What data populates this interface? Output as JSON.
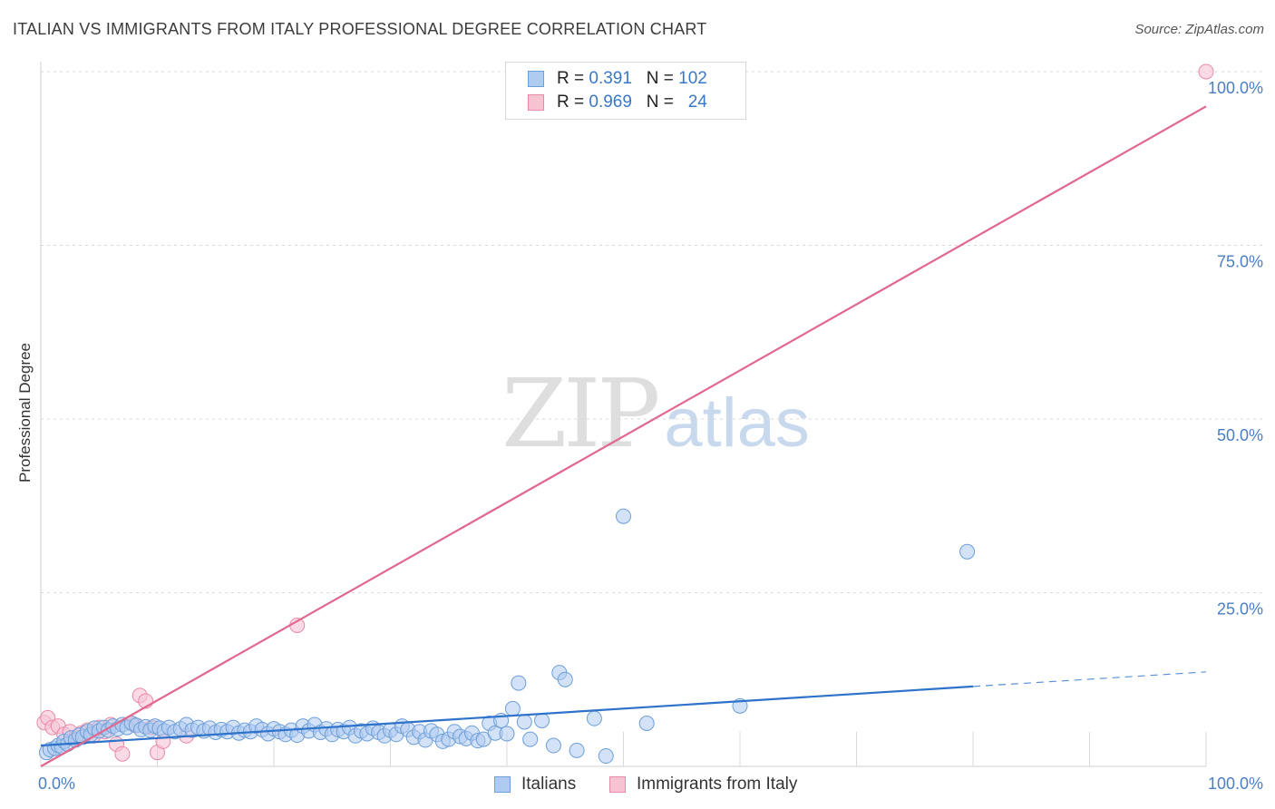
{
  "title": "ITALIAN VS IMMIGRANTS FROM ITALY PROFESSIONAL DEGREE CORRELATION CHART",
  "source": "Source: ZipAtlas.com",
  "watermark": {
    "zip": "ZIP",
    "atlas": "atlas"
  },
  "legend": {
    "r_label": "R =",
    "n_label": "N =",
    "rows": [
      {
        "r": "0.391",
        "n": "102"
      },
      {
        "r": "0.969",
        "n": "24"
      }
    ]
  },
  "colors": {
    "blue_fill": "#aecbf0",
    "blue_stroke": "#6d9fd8",
    "blue_line": "#2f72c9",
    "pink_fill": "#f7c3d3",
    "pink_stroke": "#e98aa7",
    "pink_line": "#e0688f",
    "grid": "#d9d9d9",
    "tick_text": "#4a7fc4"
  },
  "chart_data": {
    "type": "scatter",
    "title": "ITALIAN VS IMMIGRANTS FROM ITALY PROFESSIONAL DEGREE CORRELATION CHART",
    "xlabel": "",
    "ylabel": "Professional Degree",
    "xlim": [
      0,
      100
    ],
    "ylim": [
      0,
      100
    ],
    "x_tick_labels": [
      "0.0%",
      "100.0%"
    ],
    "y_ticks": [
      25,
      50,
      75,
      100
    ],
    "y_tick_labels": [
      "25.0%",
      "50.0%",
      "75.0%",
      "100.0%"
    ],
    "grid": true,
    "legend_position": "bottom-center",
    "series": [
      {
        "name": "Italians",
        "color": "#6d9fd8",
        "R": 0.391,
        "N": 102,
        "trend": {
          "x0": 0,
          "y0": 3.0,
          "x1": 80,
          "y1": 11.5,
          "dash_to_x": 100,
          "dash_to_y": 13.6
        },
        "points": [
          [
            0.5,
            2.0
          ],
          [
            0.8,
            2.4
          ],
          [
            1.2,
            2.6
          ],
          [
            1.5,
            3.0
          ],
          [
            1.8,
            2.8
          ],
          [
            2.0,
            3.6
          ],
          [
            2.3,
            3.2
          ],
          [
            2.6,
            4.1
          ],
          [
            3.0,
            3.8
          ],
          [
            3.3,
            4.5
          ],
          [
            3.6,
            4.2
          ],
          [
            4.0,
            5.0
          ],
          [
            4.3,
            4.6
          ],
          [
            4.6,
            5.5
          ],
          [
            5.0,
            5.1
          ],
          [
            5.4,
            5.6
          ],
          [
            5.8,
            5.2
          ],
          [
            6.2,
            5.8
          ],
          [
            6.6,
            5.4
          ],
          [
            7.0,
            6.0
          ],
          [
            7.4,
            5.6
          ],
          [
            7.8,
            6.2
          ],
          [
            8.2,
            5.9
          ],
          [
            8.6,
            5.3
          ],
          [
            9.0,
            5.7
          ],
          [
            9.4,
            5.2
          ],
          [
            9.8,
            5.8
          ],
          [
            10.2,
            5.5
          ],
          [
            10.6,
            5.1
          ],
          [
            11.0,
            5.6
          ],
          [
            11.5,
            5.0
          ],
          [
            12.0,
            5.4
          ],
          [
            12.5,
            6.0
          ],
          [
            13.0,
            5.2
          ],
          [
            13.5,
            5.6
          ],
          [
            14.0,
            5.1
          ],
          [
            14.5,
            5.5
          ],
          [
            15.0,
            4.9
          ],
          [
            15.5,
            5.3
          ],
          [
            16.0,
            5.0
          ],
          [
            16.5,
            5.6
          ],
          [
            17.0,
            4.8
          ],
          [
            17.5,
            5.2
          ],
          [
            18.0,
            5.0
          ],
          [
            18.5,
            5.8
          ],
          [
            19.0,
            5.3
          ],
          [
            19.5,
            4.7
          ],
          [
            20.0,
            5.4
          ],
          [
            20.5,
            5.0
          ],
          [
            21.0,
            4.6
          ],
          [
            21.5,
            5.2
          ],
          [
            22.0,
            4.5
          ],
          [
            22.5,
            5.8
          ],
          [
            23.0,
            5.1
          ],
          [
            23.5,
            6.0
          ],
          [
            24.0,
            4.9
          ],
          [
            24.5,
            5.4
          ],
          [
            25.0,
            4.6
          ],
          [
            25.5,
            5.3
          ],
          [
            26.0,
            5.0
          ],
          [
            26.5,
            5.6
          ],
          [
            27.0,
            4.4
          ],
          [
            27.5,
            5.1
          ],
          [
            28.0,
            4.7
          ],
          [
            28.5,
            5.5
          ],
          [
            29.0,
            4.9
          ],
          [
            29.5,
            4.4
          ],
          [
            30.0,
            5.2
          ],
          [
            30.5,
            4.6
          ],
          [
            31.0,
            5.8
          ],
          [
            31.5,
            5.3
          ],
          [
            32.0,
            4.2
          ],
          [
            32.5,
            5.0
          ],
          [
            33.0,
            3.8
          ],
          [
            33.5,
            5.1
          ],
          [
            34.0,
            4.6
          ],
          [
            34.5,
            3.6
          ],
          [
            35.0,
            3.9
          ],
          [
            35.5,
            5.0
          ],
          [
            36.0,
            4.3
          ],
          [
            36.5,
            4.0
          ],
          [
            37.0,
            4.8
          ],
          [
            37.5,
            3.7
          ],
          [
            38.0,
            3.9
          ],
          [
            38.5,
            6.2
          ],
          [
            39.0,
            4.8
          ],
          [
            39.5,
            6.6
          ],
          [
            40.0,
            4.7
          ],
          [
            40.5,
            8.3
          ],
          [
            41.0,
            12.0
          ],
          [
            41.5,
            6.4
          ],
          [
            42.0,
            3.9
          ],
          [
            43.0,
            6.6
          ],
          [
            44.0,
            3.0
          ],
          [
            44.5,
            13.5
          ],
          [
            45.0,
            12.5
          ],
          [
            46.0,
            2.3
          ],
          [
            47.5,
            6.9
          ],
          [
            48.5,
            1.5
          ],
          [
            50.0,
            36.0
          ],
          [
            52.0,
            6.2
          ],
          [
            60.0,
            8.7
          ],
          [
            79.5,
            30.9
          ]
        ]
      },
      {
        "name": "Immigrants from Italy",
        "color": "#e98aa7",
        "R": 0.969,
        "N": 24,
        "trend": {
          "x0": 0,
          "y0": 0,
          "x1": 100,
          "y1": 95
        },
        "points": [
          [
            0.3,
            6.3
          ],
          [
            0.6,
            7.0
          ],
          [
            1.0,
            5.6
          ],
          [
            1.5,
            5.8
          ],
          [
            2.0,
            4.6
          ],
          [
            2.5,
            5.0
          ],
          [
            3.0,
            4.2
          ],
          [
            3.5,
            4.8
          ],
          [
            4.0,
            5.2
          ],
          [
            4.5,
            4.4
          ],
          [
            5.0,
            5.6
          ],
          [
            5.5,
            5.0
          ],
          [
            6.0,
            6.0
          ],
          [
            6.5,
            3.2
          ],
          [
            7.0,
            1.8
          ],
          [
            8.0,
            6.0
          ],
          [
            8.5,
            10.2
          ],
          [
            9.0,
            9.4
          ],
          [
            9.5,
            5.6
          ],
          [
            10.0,
            2.0
          ],
          [
            10.5,
            3.6
          ],
          [
            12.5,
            4.4
          ],
          [
            22.0,
            20.3
          ],
          [
            100.0,
            100.0
          ]
        ]
      }
    ]
  }
}
